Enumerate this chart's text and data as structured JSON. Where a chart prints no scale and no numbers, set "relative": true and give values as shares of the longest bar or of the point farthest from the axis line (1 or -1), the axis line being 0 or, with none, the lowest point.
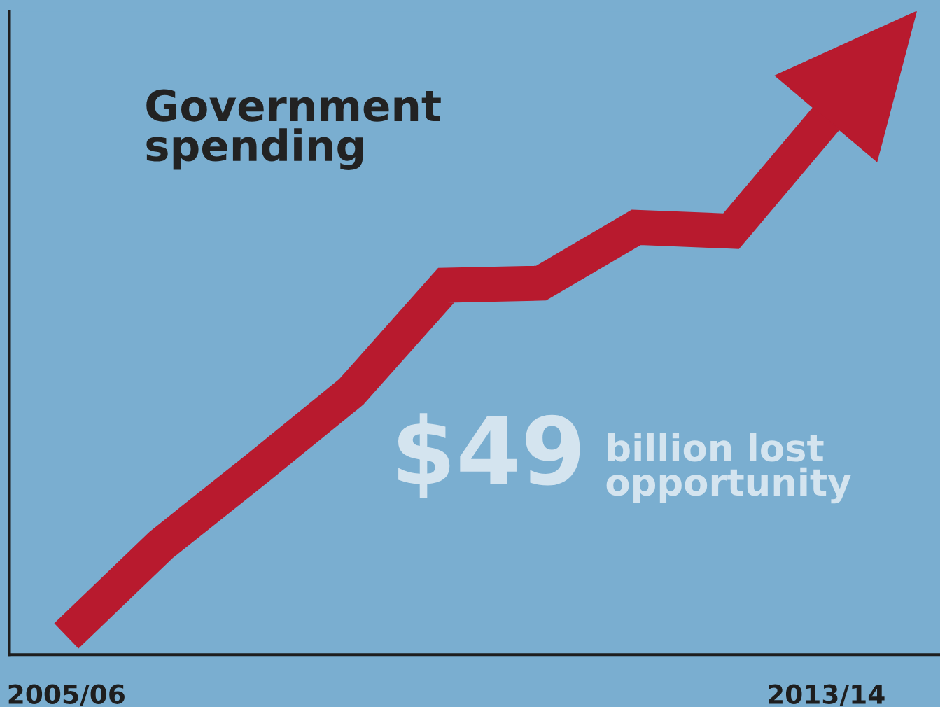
{
  "chart_data": {
    "type": "line",
    "relative": true,
    "categories": [
      "2005/06",
      null,
      null,
      null,
      null,
      null,
      null,
      null,
      "2013/14"
    ],
    "values": [
      0.035,
      0.205,
      0.346,
      0.49,
      0.689,
      0.693,
      0.797,
      0.79,
      1.0
    ],
    "color": "#b81a2e",
    "annotations": [
      "Government\nspending",
      "$49",
      "billion lost\nopportunity"
    ]
  }
}
